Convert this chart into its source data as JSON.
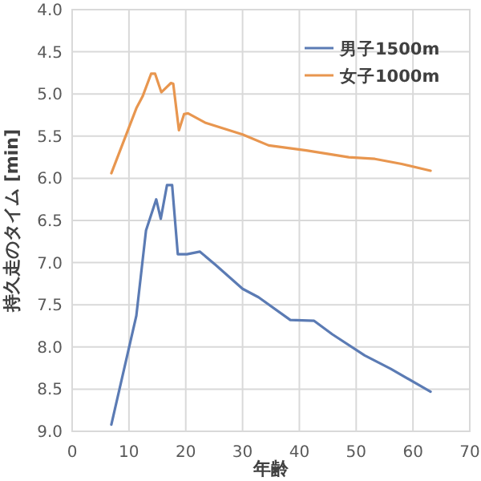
{
  "chart_data": {
    "type": "line",
    "xlabel": "年齢",
    "ylabel": "持久走のタイム [min]",
    "xlim": [
      0,
      70
    ],
    "xticks": [
      0,
      10,
      20,
      30,
      40,
      50,
      60,
      70
    ],
    "ylim": [
      9.0,
      4.0
    ],
    "yticks": [
      {
        "value": 4,
        "label": "4.0"
      },
      {
        "value": 4.5,
        "label": "4.5"
      },
      {
        "value": 5,
        "label": "5.0"
      },
      {
        "value": 5.5,
        "label": "5.5"
      },
      {
        "value": 6,
        "label": "6.0"
      },
      {
        "value": 6.5,
        "label": "6.5"
      },
      {
        "value": 7,
        "label": "7.0"
      },
      {
        "value": 7.5,
        "label": "7.5"
      },
      {
        "value": 8,
        "label": "8.0"
      },
      {
        "value": 8.5,
        "label": "8.5"
      },
      {
        "value": 9,
        "label": "9.0"
      }
    ],
    "grid": true,
    "legend": "top right",
    "marker": "none",
    "line_style": "solid",
    "series": [
      {
        "name": "男子1500m",
        "color": "#5b7bb4",
        "x": [
          6.9,
          11.3,
          13.0,
          14.8,
          15.6,
          16.7,
          17.6,
          18.6,
          20.2,
          22.5,
          25.3,
          30,
          32.8,
          38.4,
          42.6,
          45.8,
          51.5,
          56.1,
          63.1
        ],
        "values": [
          8.92,
          7.63,
          6.62,
          6.25,
          6.48,
          6.08,
          6.08,
          6.9,
          6.9,
          6.87,
          7.03,
          7.31,
          7.41,
          7.68,
          7.69,
          7.85,
          8.1,
          8.26,
          8.53
        ]
      },
      {
        "name": "女子1000m",
        "color": "#e8964f",
        "x": [
          6.9,
          11.3,
          12.4,
          13.9,
          14.6,
          15.7,
          17.4,
          17.8,
          18.8,
          19.7,
          20.4,
          23.4,
          30,
          34.6,
          41.2,
          48.7,
          53.3,
          58,
          63.1
        ],
        "values": [
          5.94,
          5.17,
          5.03,
          4.76,
          4.76,
          4.98,
          4.87,
          4.88,
          5.43,
          5.24,
          5.23,
          5.34,
          5.48,
          5.61,
          5.67,
          5.75,
          5.77,
          5.83,
          5.91
        ]
      }
    ]
  }
}
